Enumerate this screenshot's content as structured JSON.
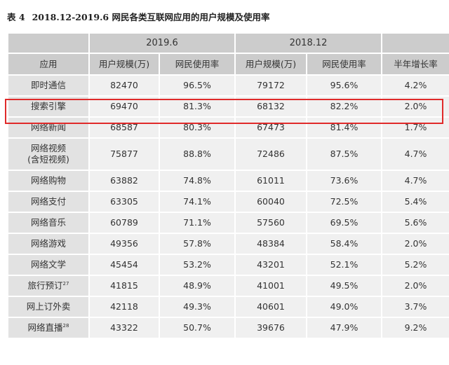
{
  "caption": {
    "number": "表 4",
    "title": "2018.12-2019.6 网民各类互联网应用的用户规模及使用率"
  },
  "header": {
    "period_a": "2019.6",
    "period_b": "2018.12",
    "app": "应用",
    "users_a": "用户规模(万)",
    "rate_a": "网民使用率",
    "users_b": "用户规模(万)",
    "rate_b": "网民使用率",
    "growth": "半年增长率"
  },
  "rows": [
    {
      "app": "即时通信",
      "note": "",
      "users_a": "82470",
      "rate_a": "96.5%",
      "users_b": "79172",
      "rate_b": "95.6%",
      "growth": "4.2%"
    },
    {
      "app": "搜索引擎",
      "note": "",
      "users_a": "69470",
      "rate_a": "81.3%",
      "users_b": "68132",
      "rate_b": "82.2%",
      "growth": "2.0%"
    },
    {
      "app": "网络新闻",
      "note": "",
      "users_a": "68587",
      "rate_a": "80.3%",
      "users_b": "67473",
      "rate_b": "81.4%",
      "growth": "1.7%"
    },
    {
      "app": "网络视频",
      "app2": "(含短视频)",
      "note": "",
      "users_a": "75877",
      "rate_a": "88.8%",
      "users_b": "72486",
      "rate_b": "87.5%",
      "growth": "4.7%"
    },
    {
      "app": "网络购物",
      "note": "",
      "users_a": "63882",
      "rate_a": "74.8%",
      "users_b": "61011",
      "rate_b": "73.6%",
      "growth": "4.7%"
    },
    {
      "app": "网络支付",
      "note": "",
      "users_a": "63305",
      "rate_a": "74.1%",
      "users_b": "60040",
      "rate_b": "72.5%",
      "growth": "5.4%"
    },
    {
      "app": "网络音乐",
      "note": "",
      "users_a": "60789",
      "rate_a": "71.1%",
      "users_b": "57560",
      "rate_b": "69.5%",
      "growth": "5.6%"
    },
    {
      "app": "网络游戏",
      "note": "",
      "users_a": "49356",
      "rate_a": "57.8%",
      "users_b": "48384",
      "rate_b": "58.4%",
      "growth": "2.0%"
    },
    {
      "app": "网络文学",
      "note": "",
      "users_a": "45454",
      "rate_a": "53.2%",
      "users_b": "43201",
      "rate_b": "52.1%",
      "growth": "5.2%"
    },
    {
      "app": "旅行预订",
      "note": "27",
      "users_a": "41815",
      "rate_a": "48.9%",
      "users_b": "41001",
      "rate_b": "49.5%",
      "growth": "2.0%"
    },
    {
      "app": "网上订外卖",
      "note": "",
      "users_a": "42118",
      "rate_a": "49.3%",
      "users_b": "40601",
      "rate_b": "49.0%",
      "growth": "3.7%"
    },
    {
      "app": "网络直播",
      "note": "28",
      "users_a": "43322",
      "rate_a": "50.7%",
      "users_b": "39676",
      "rate_b": "47.9%",
      "growth": "9.2%"
    }
  ],
  "colors": {
    "header_bg": "#cccccc",
    "cell_bg": "#f0f0f0",
    "app_cell_bg": "#e2e2e2",
    "highlight_border": "#e02a2a"
  }
}
